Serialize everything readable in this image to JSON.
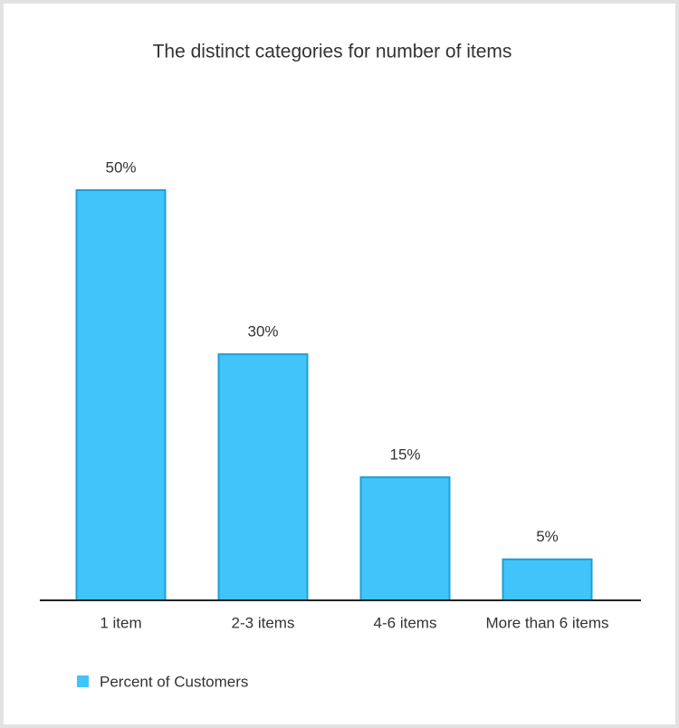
{
  "chart_data": {
    "type": "bar",
    "title": "The distinct categories for number of items",
    "categories": [
      "1 item",
      "2-3 items",
      "4-6 items",
      "More than 6 items"
    ],
    "series": [
      {
        "name": "Percent of Customers",
        "color": "#40c4fa",
        "values": [
          50,
          30,
          15,
          5
        ],
        "value_labels": [
          "50%",
          "30%",
          "15%",
          "5%"
        ]
      }
    ],
    "legend": "bottom-left"
  }
}
